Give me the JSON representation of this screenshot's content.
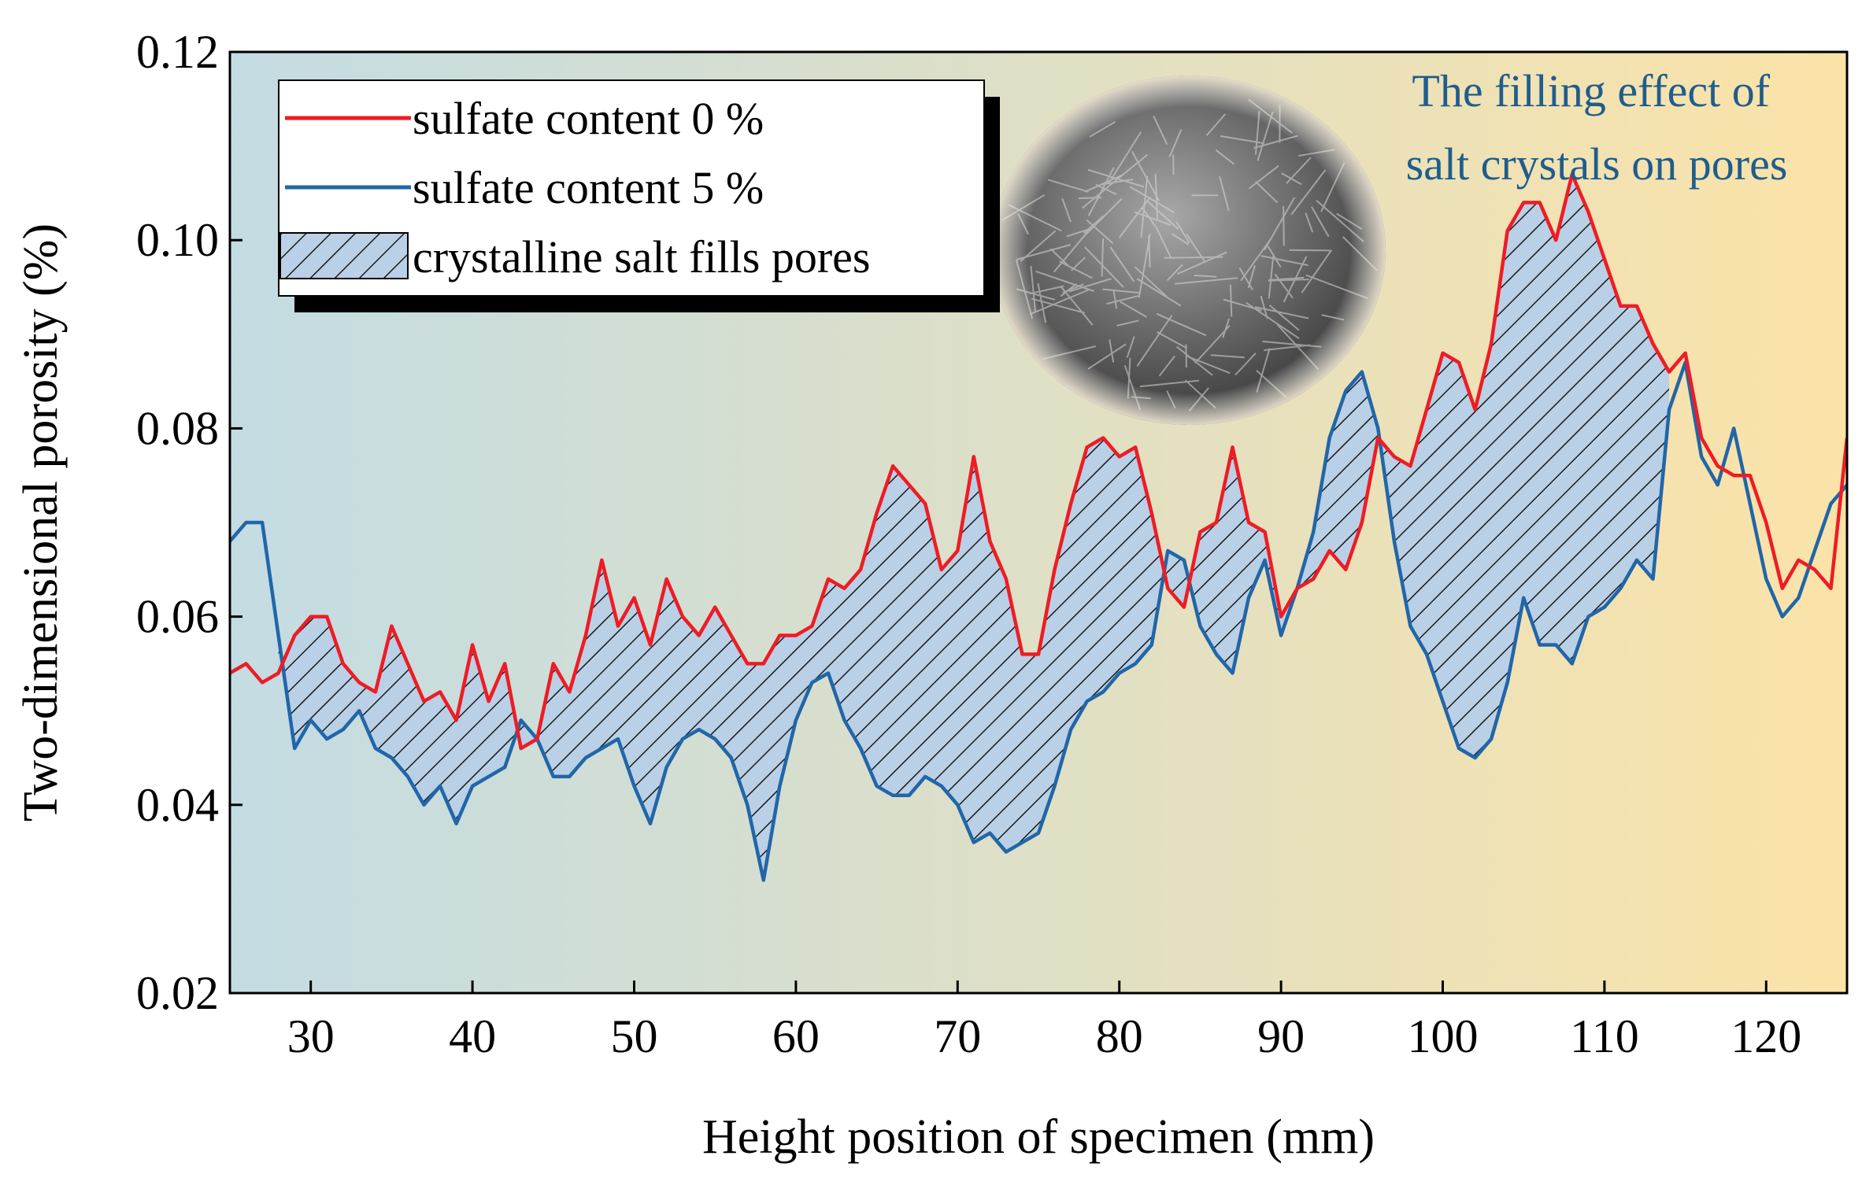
{
  "chart_data": {
    "type": "line",
    "title": "",
    "xlabel": "Height position of specimen (mm)",
    "ylabel": "Two-dimensional porosity (%)",
    "xlim": [
      25,
      125
    ],
    "ylim": [
      0.02,
      0.12
    ],
    "x_ticks": [
      30,
      40,
      50,
      60,
      70,
      80,
      90,
      100,
      110,
      120
    ],
    "y_ticks": [
      0.02,
      0.04,
      0.06,
      0.08,
      0.1,
      0.12
    ],
    "x_tick_labels": [
      "30",
      "40",
      "50",
      "60",
      "70",
      "80",
      "90",
      "100",
      "110",
      "120"
    ],
    "y_tick_labels": [
      "0.02",
      "0.04",
      "0.06",
      "0.08",
      "0.10",
      "0.12"
    ],
    "grid": false,
    "legend_position": "top-left",
    "legend": {
      "fill_label": "crystalline salt fills pores"
    },
    "annotation": "The filling effect of salt crystals on pores",
    "background_gradient": [
      "#c3dce3",
      "#fbe3a8"
    ],
    "fill_range": [
      28,
      114
    ],
    "fill_color": "#b9d0e6",
    "hatch_color": "#1a1a1a",
    "x": [
      25,
      26,
      27,
      28,
      29,
      30,
      31,
      32,
      33,
      34,
      35,
      36,
      37,
      38,
      39,
      40,
      41,
      42,
      43,
      44,
      45,
      46,
      47,
      48,
      49,
      50,
      51,
      52,
      53,
      54,
      55,
      56,
      57,
      58,
      59,
      60,
      61,
      62,
      63,
      64,
      65,
      66,
      67,
      68,
      69,
      70,
      71,
      72,
      73,
      74,
      75,
      76,
      77,
      78,
      79,
      80,
      81,
      82,
      83,
      84,
      85,
      86,
      87,
      88,
      89,
      90,
      91,
      92,
      93,
      94,
      95,
      96,
      97,
      98,
      99,
      100,
      101,
      102,
      103,
      104,
      105,
      106,
      107,
      108,
      109,
      110,
      111,
      112,
      113,
      114,
      115,
      116,
      117,
      118,
      119,
      120,
      121,
      122,
      123,
      124,
      125
    ],
    "series": [
      {
        "name": "sulfate content 0 %",
        "color": "#ee1c25",
        "values": [
          0.054,
          0.055,
          0.053,
          0.054,
          0.058,
          0.06,
          0.06,
          0.055,
          0.053,
          0.052,
          0.059,
          0.055,
          0.051,
          0.052,
          0.049,
          0.057,
          0.051,
          0.055,
          0.046,
          0.047,
          0.055,
          0.052,
          0.058,
          0.066,
          0.059,
          0.062,
          0.057,
          0.064,
          0.06,
          0.058,
          0.061,
          0.058,
          0.055,
          0.055,
          0.058,
          0.058,
          0.059,
          0.064,
          0.063,
          0.065,
          0.071,
          0.076,
          0.074,
          0.072,
          0.065,
          0.067,
          0.077,
          0.068,
          0.064,
          0.056,
          0.056,
          0.065,
          0.072,
          0.078,
          0.079,
          0.077,
          0.078,
          0.071,
          0.063,
          0.061,
          0.069,
          0.07,
          0.078,
          0.07,
          0.069,
          0.06,
          0.063,
          0.064,
          0.067,
          0.065,
          0.07,
          0.079,
          0.077,
          0.076,
          0.082,
          0.088,
          0.087,
          0.082,
          0.089,
          0.101,
          0.104,
          0.104,
          0.1,
          0.107,
          0.103,
          0.098,
          0.093,
          0.093,
          0.089,
          0.086,
          0.088,
          0.079,
          0.076,
          0.075,
          0.075,
          0.07,
          0.063,
          0.066,
          0.065,
          0.063,
          0.079
        ]
      },
      {
        "name": "sulfate content 5 %",
        "color": "#2166a8",
        "values": [
          0.068,
          0.07,
          0.07,
          0.058,
          0.046,
          0.049,
          0.047,
          0.048,
          0.05,
          0.046,
          0.045,
          0.043,
          0.04,
          0.042,
          0.038,
          0.042,
          0.043,
          0.044,
          0.049,
          0.047,
          0.043,
          0.043,
          0.045,
          0.046,
          0.047,
          0.042,
          0.038,
          0.044,
          0.047,
          0.048,
          0.047,
          0.045,
          0.04,
          0.032,
          0.042,
          0.049,
          0.053,
          0.054,
          0.049,
          0.046,
          0.042,
          0.041,
          0.041,
          0.043,
          0.042,
          0.04,
          0.036,
          0.037,
          0.035,
          0.036,
          0.037,
          0.042,
          0.048,
          0.051,
          0.052,
          0.054,
          0.055,
          0.057,
          0.067,
          0.066,
          0.059,
          0.056,
          0.054,
          0.062,
          0.066,
          0.058,
          0.063,
          0.069,
          0.079,
          0.084,
          0.086,
          0.08,
          0.068,
          0.059,
          0.056,
          0.051,
          0.046,
          0.045,
          0.047,
          0.053,
          0.062,
          0.057,
          0.057,
          0.055,
          0.06,
          0.061,
          0.063,
          0.066,
          0.064,
          0.082,
          0.087,
          0.077,
          0.074,
          0.08,
          0.072,
          0.064,
          0.06,
          0.062,
          0.067,
          0.072,
          0.074
        ]
      }
    ]
  }
}
